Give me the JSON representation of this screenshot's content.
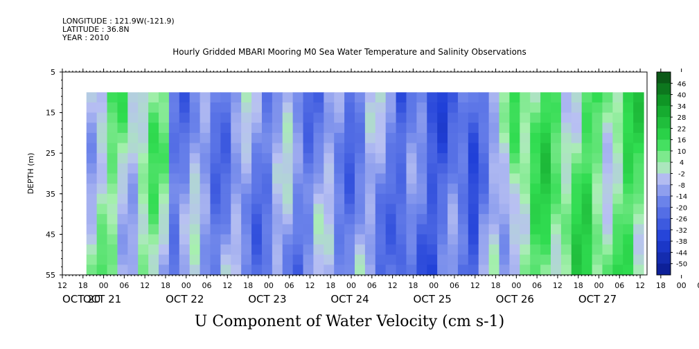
{
  "header": {
    "longitude": "LONGITUDE : 121.9W(-121.9)",
    "latitude": "LATITUDE : 36.8N",
    "year": "YEAR : 2010"
  },
  "title": "Hourly Gridded MBARI Mooring M0 Sea Water Temperature and Salinity Observations",
  "subtitle": "U Component of Water Velocity (cm s-1)",
  "chart_data": {
    "type": "heatmap",
    "title": "Hourly Gridded MBARI Mooring M0 Sea Water Temperature and Salinity Observations",
    "ylabel": "DEPTH (m)",
    "xlabel": "",
    "ylim": [
      55,
      5
    ],
    "y_ticks": [
      "5",
      "15",
      "25",
      "35",
      "45",
      "55"
    ],
    "x_hour_ticks": [
      "12",
      "18",
      "00",
      "06",
      "12",
      "18",
      "00",
      "06",
      "12",
      "18",
      "00",
      "06",
      "12",
      "18",
      "00",
      "06",
      "12",
      "18",
      "00",
      "06",
      "12",
      "18",
      "00",
      "06",
      "12",
      "18",
      "00",
      "06",
      "12",
      "18",
      "00",
      "06",
      "12"
    ],
    "x_date_ticks": [
      "OCT 20",
      "OCT 21",
      "OCT 22",
      "OCT 23",
      "OCT 24",
      "OCT 25",
      "OCT 26",
      "OCT 27"
    ],
    "data_extent": {
      "depth_top_m": 10,
      "depth_bottom_m": 55,
      "start": "Oct 20 19:00",
      "end": "Oct 27 12:00"
    },
    "colorbar": {
      "labels": [
        "46",
        "40",
        "34",
        "28",
        "22",
        "16",
        "10",
        "4",
        "-2",
        "-8",
        "-14",
        "-20",
        "-26",
        "-32",
        "-38",
        "-44",
        "-50"
      ],
      "range": [
        -50,
        50
      ],
      "units": "cm s-1"
    },
    "dominant_pattern": [
      {
        "period": "Oct 20 19:00 - Oct 21 18:00",
        "tendency": "mixed weak positive/negative",
        "u_approx": 2
      },
      {
        "period": "Oct 21 18:00 - Oct 24 12:00",
        "tendency": "negative (westward)",
        "u_approx": -12
      },
      {
        "period": "Oct 24 12:00 - Oct 25 12:00",
        "tendency": "strong negative",
        "u_approx": -24
      },
      {
        "period": "Oct 25 12:00 - Oct 27 12:00",
        "tendency": "positive (eastward)",
        "u_approx": 10
      }
    ]
  },
  "colors": {
    "negative_strong": "#0a1a8c",
    "negative_mid": "#3a5ae0",
    "negative_weak": "#aab4f0",
    "positive_weak": "#9ff0a8",
    "positive_mid": "#26d646",
    "positive_strong": "#0a5a14"
  }
}
